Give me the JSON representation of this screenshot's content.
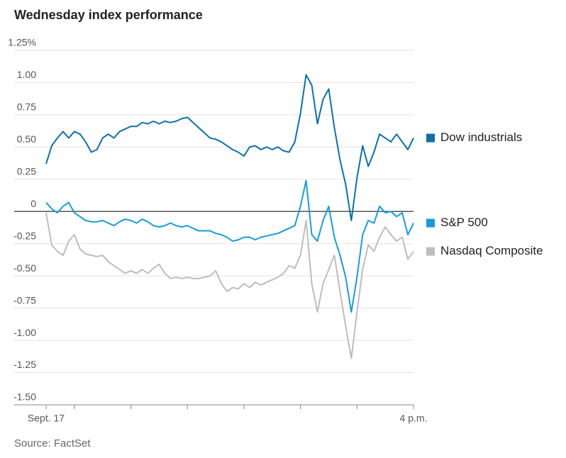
{
  "chart_data": {
    "type": "line",
    "title": "Wednesday index performance",
    "source": "Source: FactSet",
    "x": [
      9.5,
      9.6,
      9.7,
      9.8,
      9.9,
      10.0,
      10.1,
      10.2,
      10.3,
      10.4,
      10.5,
      10.6,
      10.7,
      10.8,
      10.9,
      11.0,
      11.1,
      11.2,
      11.3,
      11.4,
      11.5,
      11.6,
      11.7,
      11.8,
      11.9,
      12.0,
      12.1,
      12.2,
      12.3,
      12.4,
      12.5,
      12.6,
      12.7,
      12.8,
      12.9,
      13.0,
      13.1,
      13.2,
      13.3,
      13.4,
      13.5,
      13.6,
      13.7,
      13.8,
      13.9,
      14.0,
      14.1,
      14.2,
      14.3,
      14.4,
      14.5,
      14.6,
      14.7,
      14.8,
      14.9,
      15.0,
      15.1,
      15.2,
      15.3,
      15.4,
      15.5,
      15.6,
      15.7,
      15.8,
      15.9,
      16.0
    ],
    "xlim": [
      9.5,
      16
    ],
    "xticks": [
      {
        "value": 9.5,
        "label": "Sept. 17"
      },
      {
        "value": 16,
        "label": "4 p.m."
      }
    ],
    "xminorticks": [
      10,
      11,
      12,
      13,
      14,
      15
    ],
    "ylim": [
      -1.5,
      1.25
    ],
    "yticks": [
      {
        "value": 1.25,
        "label": "1.25%"
      },
      {
        "value": 1,
        "label": "1.00"
      },
      0.75,
      {
        "value": 0.5,
        "label": "0.50"
      },
      0.25,
      0,
      -0.25,
      {
        "value": -0.5,
        "label": "-0.50"
      },
      -0.75,
      {
        "value": -1,
        "label": "-1.00"
      },
      -1.25,
      {
        "value": -1.5,
        "label": "-1.50"
      }
    ],
    "grid": true,
    "series": [
      {
        "name": "Dow industrials",
        "color": "#0f6fa6",
        "values": [
          0.37,
          0.51,
          0.57,
          0.62,
          0.57,
          0.62,
          0.6,
          0.54,
          0.46,
          0.48,
          0.57,
          0.6,
          0.57,
          0.62,
          0.64,
          0.66,
          0.66,
          0.69,
          0.68,
          0.7,
          0.68,
          0.7,
          0.69,
          0.7,
          0.72,
          0.73,
          0.69,
          0.65,
          0.61,
          0.57,
          0.56,
          0.54,
          0.51,
          0.48,
          0.46,
          0.43,
          0.5,
          0.51,
          0.48,
          0.5,
          0.48,
          0.5,
          0.47,
          0.46,
          0.54,
          0.76,
          1.06,
          0.98,
          0.68,
          0.87,
          0.95,
          0.65,
          0.4,
          0.21,
          -0.07,
          0.26,
          0.51,
          0.35,
          0.46,
          0.6,
          0.57,
          0.54,
          0.6,
          0.54,
          0.48,
          0.57
        ]
      },
      {
        "name": "S&P 500",
        "color": "#1a9bd7",
        "values": [
          0.07,
          0.02,
          -0.01,
          0.04,
          0.07,
          -0.01,
          -0.04,
          -0.07,
          -0.08,
          -0.08,
          -0.07,
          -0.09,
          -0.11,
          -0.08,
          -0.06,
          -0.07,
          -0.09,
          -0.06,
          -0.08,
          -0.11,
          -0.12,
          -0.11,
          -0.09,
          -0.11,
          -0.12,
          -0.11,
          -0.13,
          -0.15,
          -0.15,
          -0.15,
          -0.17,
          -0.18,
          -0.2,
          -0.23,
          -0.22,
          -0.2,
          -0.2,
          -0.22,
          -0.2,
          -0.19,
          -0.18,
          -0.17,
          -0.15,
          -0.13,
          -0.11,
          0.04,
          0.24,
          -0.18,
          -0.23,
          -0.07,
          0.04,
          -0.2,
          -0.34,
          -0.51,
          -0.78,
          -0.51,
          -0.18,
          -0.07,
          -0.09,
          0.04,
          -0.01,
          0,
          -0.04,
          -0.01,
          -0.18,
          -0.09
        ]
      },
      {
        "name": "Nasdaq Composite",
        "color": "#bdbdbd",
        "values": [
          -0.01,
          -0.26,
          -0.31,
          -0.34,
          -0.23,
          -0.18,
          -0.29,
          -0.33,
          -0.34,
          -0.35,
          -0.34,
          -0.39,
          -0.42,
          -0.45,
          -0.48,
          -0.46,
          -0.48,
          -0.45,
          -0.48,
          -0.44,
          -0.41,
          -0.48,
          -0.52,
          -0.51,
          -0.52,
          -0.51,
          -0.52,
          -0.52,
          -0.51,
          -0.5,
          -0.46,
          -0.56,
          -0.62,
          -0.59,
          -0.6,
          -0.56,
          -0.59,
          -0.55,
          -0.57,
          -0.55,
          -0.53,
          -0.51,
          -0.48,
          -0.42,
          -0.44,
          -0.34,
          -0.07,
          -0.56,
          -0.78,
          -0.56,
          -0.45,
          -0.34,
          -0.62,
          -0.89,
          -1.14,
          -0.78,
          -0.45,
          -0.26,
          -0.31,
          -0.2,
          -0.12,
          -0.18,
          -0.23,
          -0.2,
          -0.37,
          -0.31
        ]
      }
    ]
  }
}
